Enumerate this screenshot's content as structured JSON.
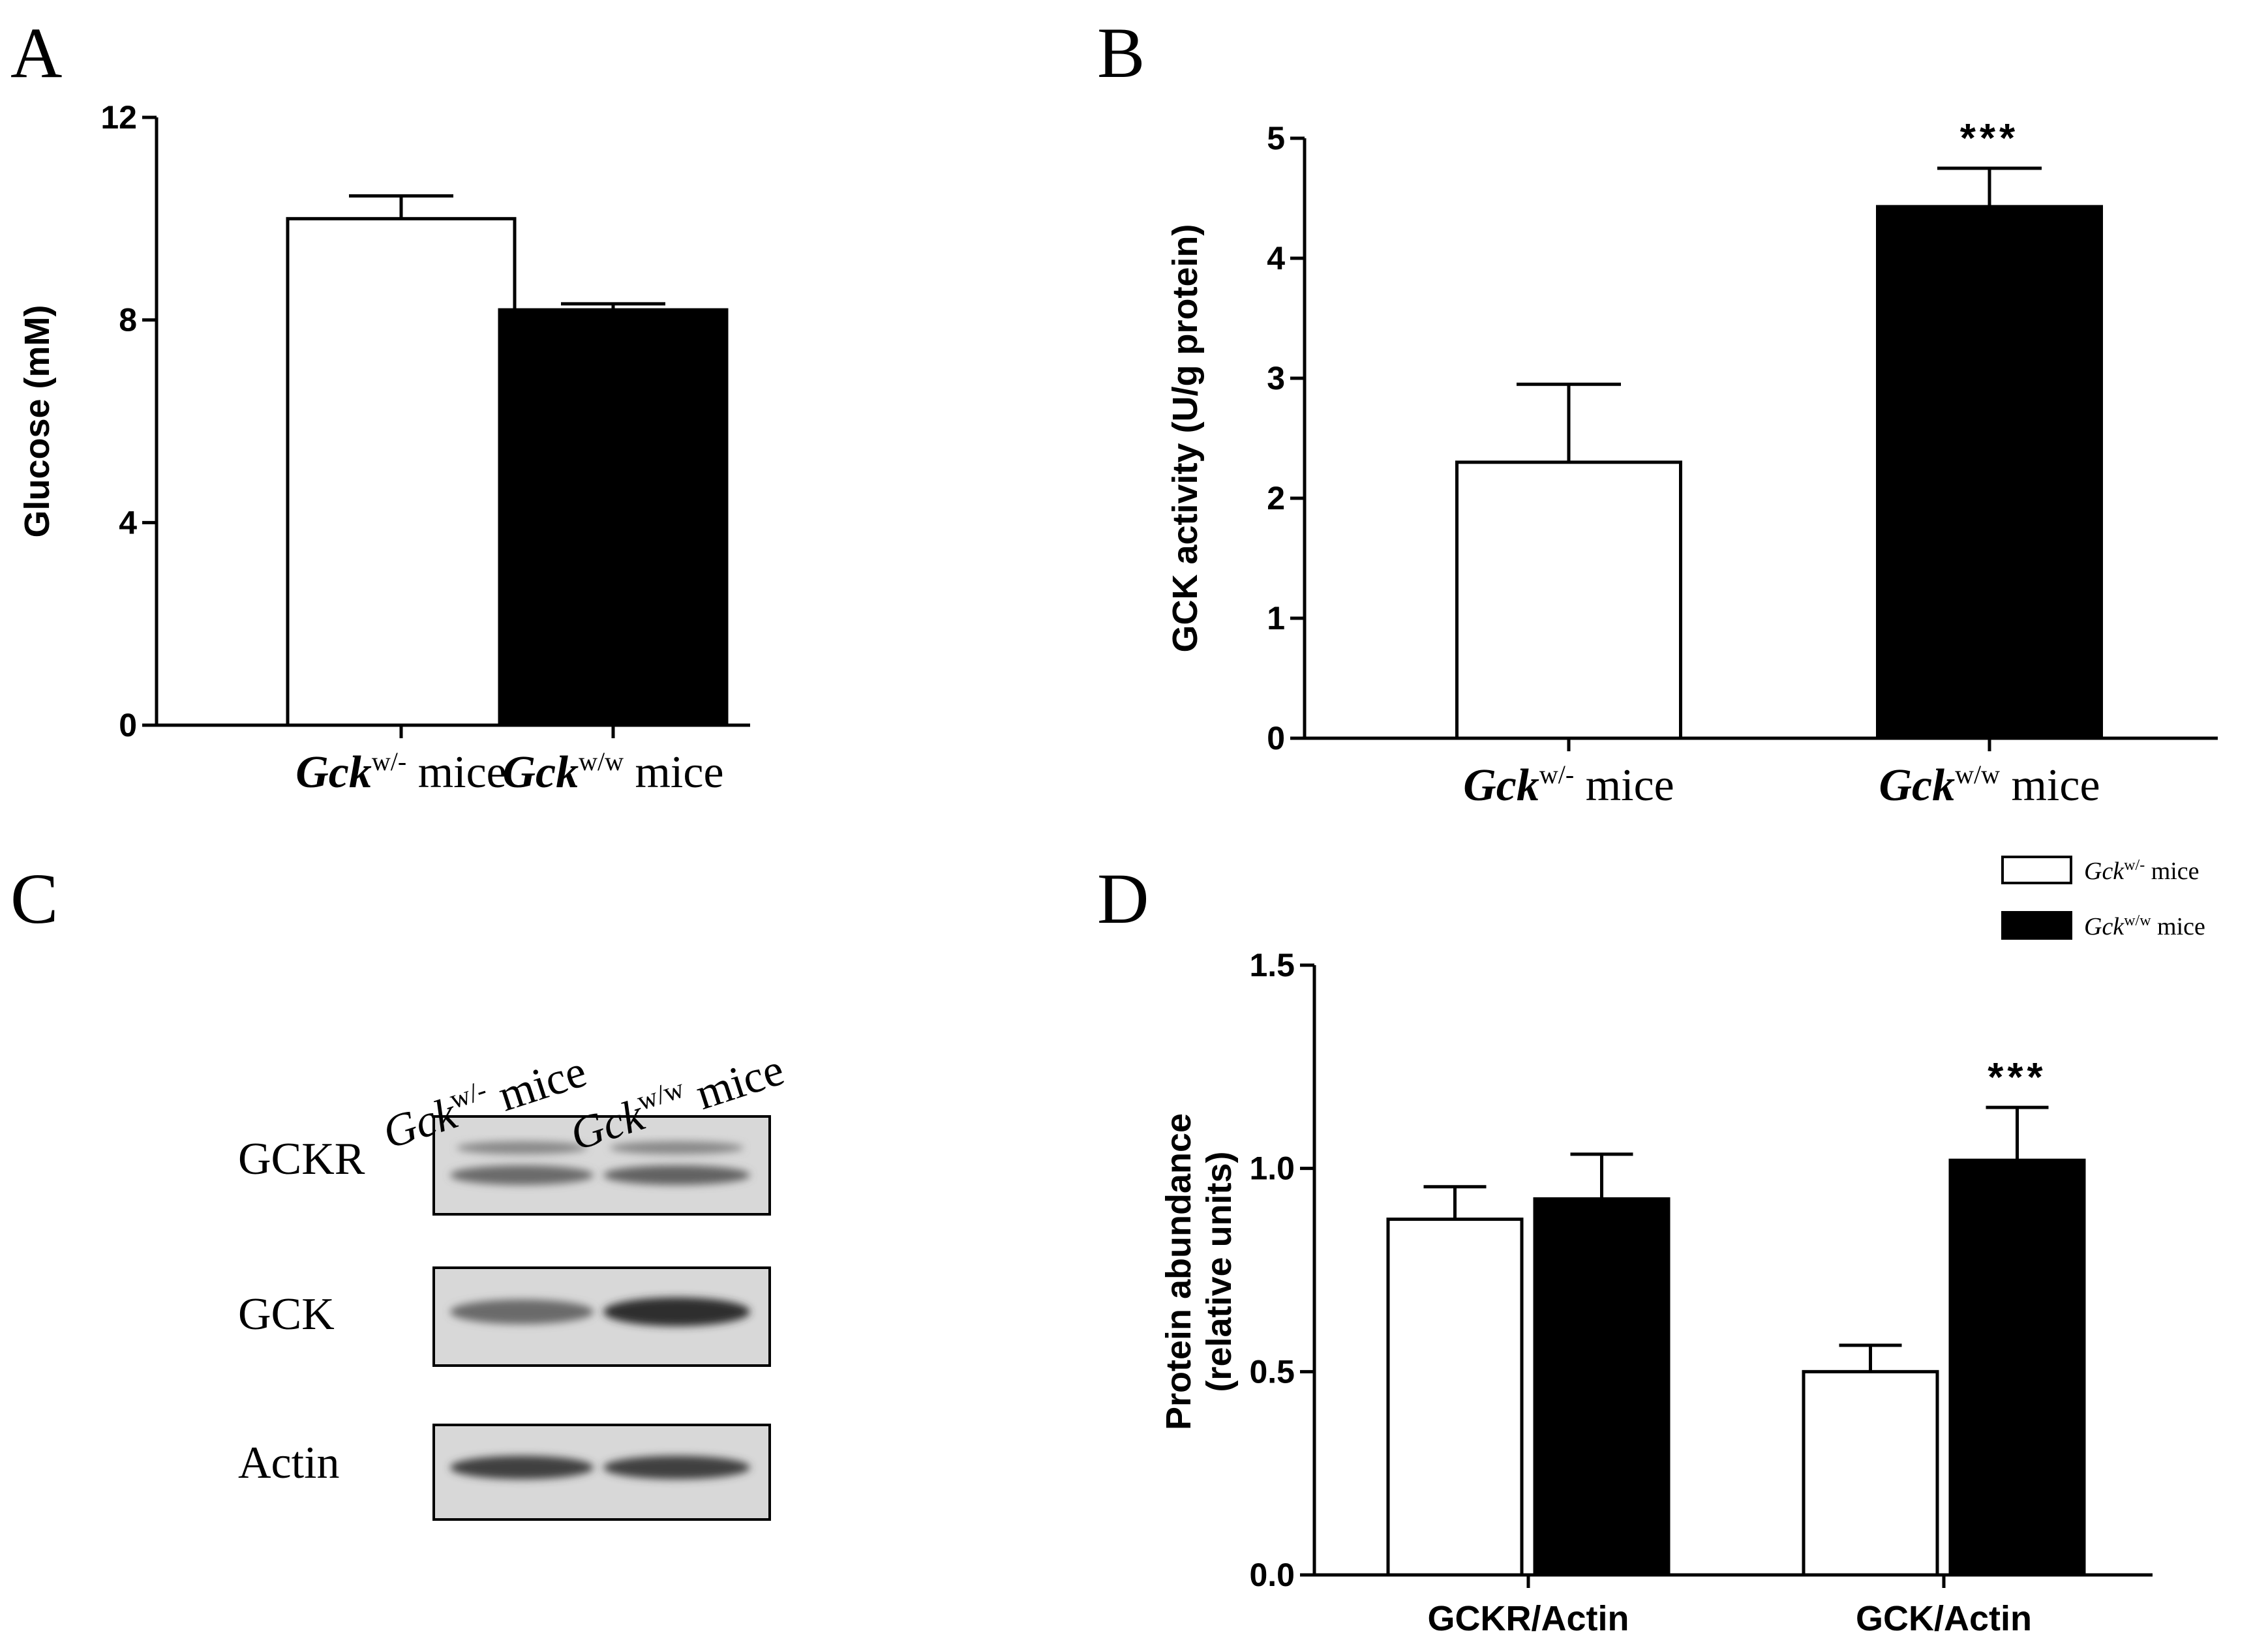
{
  "panels": [
    {
      "letter": "A"
    },
    {
      "letter": "B"
    },
    {
      "letter": "C"
    },
    {
      "letter": "D"
    }
  ],
  "colors": {
    "white_bar": "#ffffff",
    "black_bar": "#000000",
    "axis": "#000000"
  },
  "chart_data": [
    {
      "panel": "A",
      "type": "bar",
      "categories": [
        {
          "gene": "Gck",
          "sup": "w/-",
          "suffix": " mice"
        },
        {
          "gene": "Gck",
          "sup": "w/w",
          "suffix": " mice"
        }
      ],
      "values": [
        10.0,
        8.2
      ],
      "errors": [
        0.45,
        0.12
      ],
      "bar_colors": [
        "white",
        "black"
      ],
      "ylabel": "Glucose  (mM)",
      "ylim": [
        0,
        12
      ],
      "yticks": [
        "0",
        "4",
        "8",
        "12"
      ],
      "significance": [
        "",
        ""
      ]
    },
    {
      "panel": "B",
      "type": "bar",
      "categories": [
        {
          "gene": "Gck",
          "sup": "w/-",
          "suffix": " mice"
        },
        {
          "gene": "Gck",
          "sup": "w/w",
          "suffix": " mice"
        }
      ],
      "values": [
        2.3,
        4.43
      ],
      "errors": [
        0.65,
        0.32
      ],
      "bar_colors": [
        "white",
        "black"
      ],
      "ylabel": "GCK activity (U/g protein)",
      "ylim": [
        0,
        5
      ],
      "yticks": [
        "0",
        "1",
        "2",
        "3",
        "4",
        "5"
      ],
      "significance": [
        "",
        "***"
      ]
    },
    {
      "panel": "D",
      "type": "bar",
      "categories": [
        "GCKR/Actin",
        "GCK/Actin"
      ],
      "series": [
        {
          "name": {
            "gene": "Gck",
            "sup": "w/-",
            "suffix": " mice"
          },
          "color": "white",
          "values": [
            0.875,
            0.5
          ],
          "errors": [
            0.08,
            0.065
          ]
        },
        {
          "name": {
            "gene": "Gck",
            "sup": "w/w",
            "suffix": " mice"
          },
          "color": "black",
          "values": [
            0.925,
            1.02
          ],
          "errors": [
            0.11,
            0.13
          ]
        }
      ],
      "ylabel_lines": [
        "Protein abundance",
        "(relative units)"
      ],
      "ylim": [
        0,
        1.5
      ],
      "yticks": [
        "0.0",
        "0.5",
        "1.0",
        "1.5"
      ],
      "significance": {
        "GCK/Actin": "***"
      },
      "legend_position": "top-right"
    }
  ],
  "western_blot": {
    "lanes": [
      {
        "gene": "Gck",
        "sup": "w/-",
        "suffix": " mice"
      },
      {
        "gene": "Gck",
        "sup": "w/w",
        "suffix": " mice"
      }
    ],
    "rows": [
      {
        "label": "GCKR",
        "band_intensity": [
          0.55,
          0.6
        ]
      },
      {
        "label": "GCK",
        "band_intensity": [
          0.55,
          0.9
        ]
      },
      {
        "label": "Actin",
        "band_intensity": [
          0.8,
          0.8
        ]
      }
    ]
  }
}
